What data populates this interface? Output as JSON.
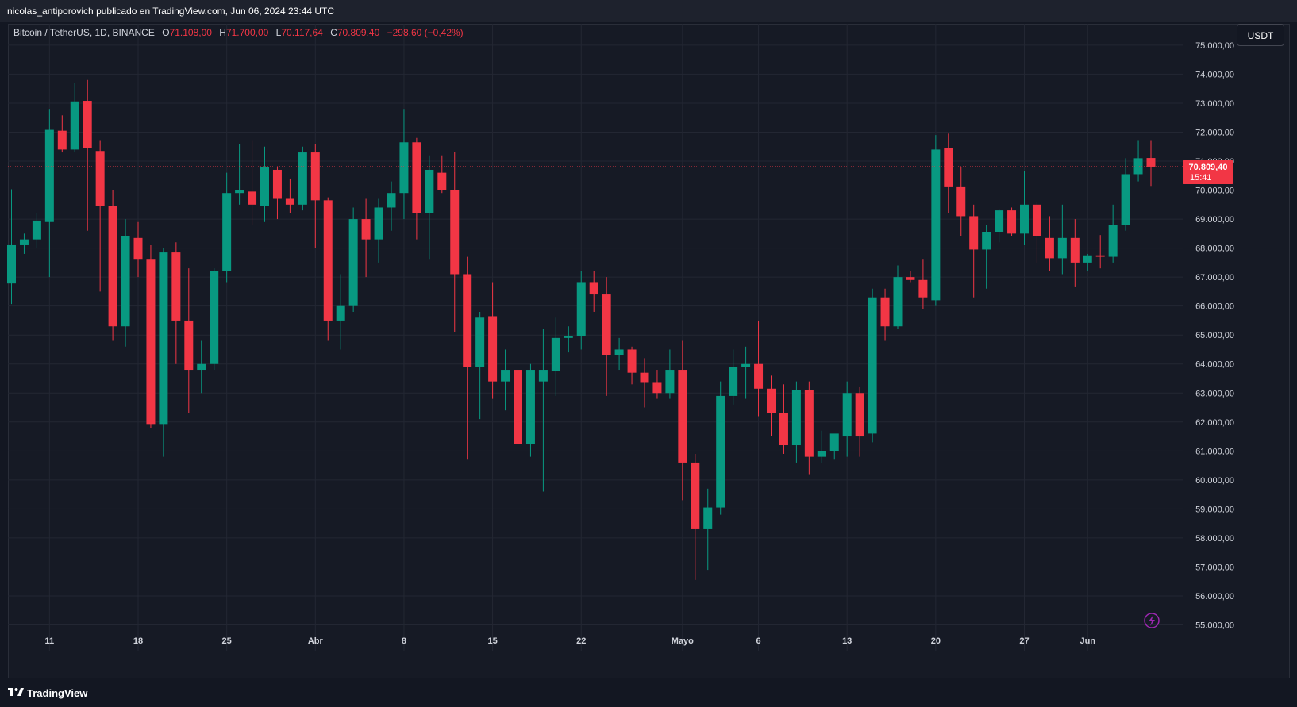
{
  "header": {
    "publisher_line": "nicolas_antiporovich publicado en TradingView.com, Jun 06, 2024 23:44 UTC"
  },
  "legend": {
    "symbol": "Bitcoin / TetherUS, 1D, BINANCE",
    "open_label": "O",
    "open": "71.108,00",
    "high_label": "H",
    "high": "71.700,00",
    "low_label": "L",
    "low": "70.117,64",
    "close_label": "C",
    "close": "70.809,40",
    "change": "−298,60 (−0,42%)"
  },
  "unit_button": {
    "label": "USDT"
  },
  "price_tag": {
    "price": "70.809,40",
    "countdown": "15:41"
  },
  "footer": {
    "brand": "TradingView",
    "logo_icon": "tradingview-logo-icon"
  },
  "colors": {
    "up": "#089981",
    "down": "#f23645",
    "background": "#161a25",
    "grid": "#232733",
    "text": "#d1d4dc"
  },
  "chart_data": {
    "type": "candlestick",
    "ylim": [
      54700,
      75250
    ],
    "y_ticks": [
      {
        "value": 75000,
        "label": "75.000,00"
      },
      {
        "value": 74000,
        "label": "74.000,00"
      },
      {
        "value": 73000,
        "label": "73.000,00"
      },
      {
        "value": 72000,
        "label": "72.000,00"
      },
      {
        "value": 71000,
        "label": "71.000,00"
      },
      {
        "value": 70000,
        "label": "70.000,00"
      },
      {
        "value": 69000,
        "label": "69.000,00"
      },
      {
        "value": 68000,
        "label": "68.000,00"
      },
      {
        "value": 67000,
        "label": "67.000,00"
      },
      {
        "value": 66000,
        "label": "66.000,00"
      },
      {
        "value": 65000,
        "label": "65.000,00"
      },
      {
        "value": 64000,
        "label": "64.000,00"
      },
      {
        "value": 63000,
        "label": "63.000,00"
      },
      {
        "value": 62000,
        "label": "62.000,00"
      },
      {
        "value": 61000,
        "label": "61.000,00"
      },
      {
        "value": 60000,
        "label": "60.000,00"
      },
      {
        "value": 59000,
        "label": "59.000,00"
      },
      {
        "value": 58000,
        "label": "58.000,00"
      },
      {
        "value": 57000,
        "label": "57.000,00"
      },
      {
        "value": 56000,
        "label": "56.000,00"
      },
      {
        "value": 55000,
        "label": "55.000,00"
      }
    ],
    "x_ticks": [
      {
        "index": 3,
        "label": "11"
      },
      {
        "index": 10,
        "label": "18"
      },
      {
        "index": 17,
        "label": "25"
      },
      {
        "index": 24,
        "label": "Abr"
      },
      {
        "index": 31,
        "label": "8"
      },
      {
        "index": 38,
        "label": "15"
      },
      {
        "index": 45,
        "label": "22"
      },
      {
        "index": 53,
        "label": "Mayo"
      },
      {
        "index": 59,
        "label": "6"
      },
      {
        "index": 66,
        "label": "13"
      },
      {
        "index": 73,
        "label": "20"
      },
      {
        "index": 80,
        "label": "27"
      },
      {
        "index": 85,
        "label": "Jun"
      }
    ],
    "last_price": 70809.4,
    "candles": [
      {
        "o": 66780,
        "h": 70030,
        "l": 66070,
        "c": 68100
      },
      {
        "o": 68100,
        "h": 68500,
        "l": 67800,
        "c": 68300
      },
      {
        "o": 68300,
        "h": 69200,
        "l": 68000,
        "c": 68950
      },
      {
        "o": 68900,
        "h": 72800,
        "l": 67000,
        "c": 72080
      },
      {
        "o": 72050,
        "h": 72580,
        "l": 71300,
        "c": 71400
      },
      {
        "o": 71400,
        "h": 73700,
        "l": 71300,
        "c": 73060
      },
      {
        "o": 73080,
        "h": 73800,
        "l": 68600,
        "c": 71450
      },
      {
        "o": 71350,
        "h": 71700,
        "l": 66500,
        "c": 69450
      },
      {
        "o": 69450,
        "h": 70000,
        "l": 64800,
        "c": 65300
      },
      {
        "o": 65300,
        "h": 69000,
        "l": 64600,
        "c": 68400
      },
      {
        "o": 68350,
        "h": 68900,
        "l": 67000,
        "c": 67600
      },
      {
        "o": 67600,
        "h": 68100,
        "l": 61800,
        "c": 61930
      },
      {
        "o": 61930,
        "h": 68000,
        "l": 60800,
        "c": 67850
      },
      {
        "o": 67850,
        "h": 68200,
        "l": 64000,
        "c": 65500
      },
      {
        "o": 65500,
        "h": 67300,
        "l": 62300,
        "c": 63800
      },
      {
        "o": 63800,
        "h": 64800,
        "l": 63000,
        "c": 64000
      },
      {
        "o": 64000,
        "h": 67300,
        "l": 63800,
        "c": 67200
      },
      {
        "o": 67200,
        "h": 70600,
        "l": 66800,
        "c": 69900
      },
      {
        "o": 69900,
        "h": 71600,
        "l": 69500,
        "c": 70000
      },
      {
        "o": 69950,
        "h": 71700,
        "l": 68800,
        "c": 69500
      },
      {
        "o": 69450,
        "h": 71500,
        "l": 68900,
        "c": 70800
      },
      {
        "o": 70700,
        "h": 70800,
        "l": 69000,
        "c": 69700
      },
      {
        "o": 69700,
        "h": 70400,
        "l": 69200,
        "c": 69500
      },
      {
        "o": 69500,
        "h": 71500,
        "l": 69300,
        "c": 71300
      },
      {
        "o": 71300,
        "h": 71600,
        "l": 68000,
        "c": 69650
      },
      {
        "o": 69650,
        "h": 69750,
        "l": 64800,
        "c": 65500
      },
      {
        "o": 65500,
        "h": 67100,
        "l": 64500,
        "c": 66000
      },
      {
        "o": 66000,
        "h": 69400,
        "l": 65800,
        "c": 69000
      },
      {
        "o": 69000,
        "h": 69700,
        "l": 67000,
        "c": 68300
      },
      {
        "o": 68300,
        "h": 69700,
        "l": 67500,
        "c": 69400
      },
      {
        "o": 69400,
        "h": 70300,
        "l": 68600,
        "c": 69900
      },
      {
        "o": 69900,
        "h": 72800,
        "l": 69000,
        "c": 71650
      },
      {
        "o": 71650,
        "h": 71800,
        "l": 68300,
        "c": 69200
      },
      {
        "o": 69200,
        "h": 71200,
        "l": 67600,
        "c": 70700
      },
      {
        "o": 70600,
        "h": 71200,
        "l": 69900,
        "c": 70000
      },
      {
        "o": 70000,
        "h": 71300,
        "l": 65100,
        "c": 67100
      },
      {
        "o": 67100,
        "h": 67700,
        "l": 60700,
        "c": 63900
      },
      {
        "o": 63900,
        "h": 65800,
        "l": 62100,
        "c": 65600
      },
      {
        "o": 65650,
        "h": 66800,
        "l": 62800,
        "c": 63400
      },
      {
        "o": 63400,
        "h": 64500,
        "l": 62400,
        "c": 63800
      },
      {
        "o": 63800,
        "h": 64100,
        "l": 59700,
        "c": 61250
      },
      {
        "o": 61250,
        "h": 64000,
        "l": 60800,
        "c": 63800
      },
      {
        "o": 63400,
        "h": 65200,
        "l": 59600,
        "c": 63800
      },
      {
        "o": 63750,
        "h": 65600,
        "l": 62900,
        "c": 64900
      },
      {
        "o": 64900,
        "h": 65300,
        "l": 64400,
        "c": 64950
      },
      {
        "o": 64950,
        "h": 67200,
        "l": 64500,
        "c": 66800
      },
      {
        "o": 66800,
        "h": 67200,
        "l": 65800,
        "c": 66400
      },
      {
        "o": 66400,
        "h": 67000,
        "l": 62900,
        "c": 64300
      },
      {
        "o": 64300,
        "h": 64900,
        "l": 63800,
        "c": 64500
      },
      {
        "o": 64500,
        "h": 64600,
        "l": 63300,
        "c": 63700
      },
      {
        "o": 63700,
        "h": 64200,
        "l": 62500,
        "c": 63350
      },
      {
        "o": 63350,
        "h": 63800,
        "l": 62800,
        "c": 63000
      },
      {
        "o": 63000,
        "h": 64500,
        "l": 62800,
        "c": 63800
      },
      {
        "o": 63800,
        "h": 64800,
        "l": 59300,
        "c": 60600
      },
      {
        "o": 60600,
        "h": 60900,
        "l": 56550,
        "c": 58300
      },
      {
        "o": 58300,
        "h": 59700,
        "l": 56900,
        "c": 59050
      },
      {
        "o": 59050,
        "h": 63400,
        "l": 58800,
        "c": 62900
      },
      {
        "o": 62900,
        "h": 64500,
        "l": 62600,
        "c": 63900
      },
      {
        "o": 63900,
        "h": 64600,
        "l": 62800,
        "c": 64000
      },
      {
        "o": 64000,
        "h": 65500,
        "l": 62200,
        "c": 63150
      },
      {
        "o": 63150,
        "h": 63600,
        "l": 61500,
        "c": 62300
      },
      {
        "o": 62300,
        "h": 63300,
        "l": 60900,
        "c": 61200
      },
      {
        "o": 61200,
        "h": 63400,
        "l": 60600,
        "c": 63100
      },
      {
        "o": 63100,
        "h": 63400,
        "l": 60200,
        "c": 60800
      },
      {
        "o": 60800,
        "h": 61700,
        "l": 60600,
        "c": 61000
      },
      {
        "o": 61000,
        "h": 61500,
        "l": 60700,
        "c": 61600
      },
      {
        "o": 61500,
        "h": 63400,
        "l": 60800,
        "c": 63000
      },
      {
        "o": 63000,
        "h": 63200,
        "l": 60800,
        "c": 61500
      },
      {
        "o": 61600,
        "h": 66600,
        "l": 61300,
        "c": 66300
      },
      {
        "o": 66300,
        "h": 66600,
        "l": 64800,
        "c": 65300
      },
      {
        "o": 65300,
        "h": 67400,
        "l": 65200,
        "c": 67000
      },
      {
        "o": 67000,
        "h": 67200,
        "l": 66800,
        "c": 66900
      },
      {
        "o": 66900,
        "h": 67600,
        "l": 65900,
        "c": 66300
      },
      {
        "o": 66200,
        "h": 71900,
        "l": 66000,
        "c": 71400
      },
      {
        "o": 71450,
        "h": 71950,
        "l": 69200,
        "c": 70100
      },
      {
        "o": 70100,
        "h": 70800,
        "l": 68400,
        "c": 69100
      },
      {
        "o": 69100,
        "h": 69500,
        "l": 66300,
        "c": 67950
      },
      {
        "o": 67950,
        "h": 68800,
        "l": 66600,
        "c": 68550
      },
      {
        "o": 68550,
        "h": 69350,
        "l": 68200,
        "c": 69300
      },
      {
        "o": 69300,
        "h": 69400,
        "l": 68400,
        "c": 68500
      },
      {
        "o": 68500,
        "h": 70650,
        "l": 68100,
        "c": 69500
      },
      {
        "o": 69500,
        "h": 69600,
        "l": 67500,
        "c": 68400
      },
      {
        "o": 68350,
        "h": 69100,
        "l": 67200,
        "c": 67650
      },
      {
        "o": 67650,
        "h": 69500,
        "l": 67100,
        "c": 68350
      },
      {
        "o": 68350,
        "h": 69000,
        "l": 66650,
        "c": 67500
      },
      {
        "o": 67500,
        "h": 67800,
        "l": 67200,
        "c": 67750
      },
      {
        "o": 67750,
        "h": 68450,
        "l": 67300,
        "c": 67700
      },
      {
        "o": 67700,
        "h": 69500,
        "l": 67500,
        "c": 68800
      },
      {
        "o": 68800,
        "h": 71100,
        "l": 68600,
        "c": 70550
      },
      {
        "o": 70550,
        "h": 71700,
        "l": 70300,
        "c": 71100
      },
      {
        "o": 71108,
        "h": 71700,
        "l": 70117.64,
        "c": 70809.4
      }
    ]
  }
}
